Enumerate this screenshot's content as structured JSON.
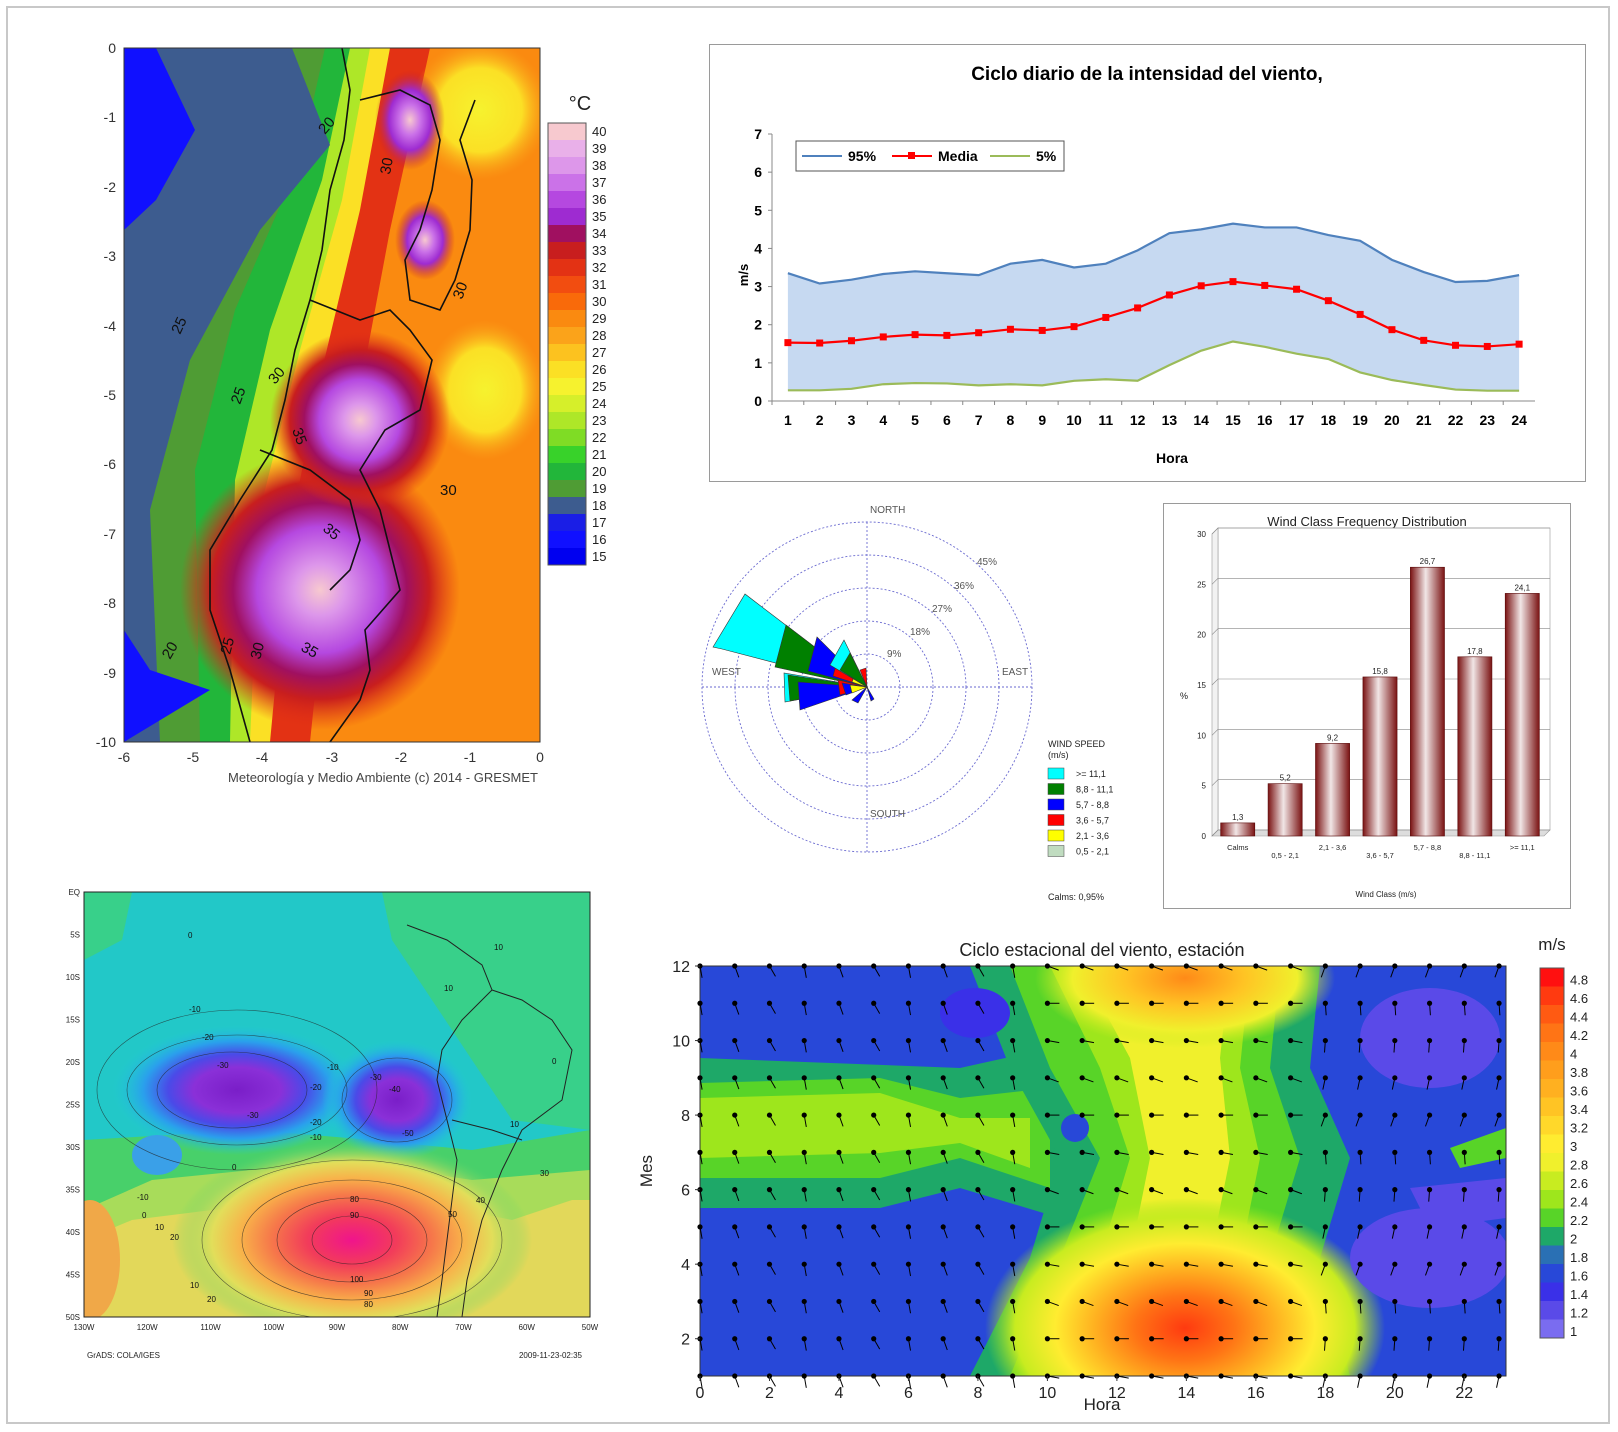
{
  "temp_map": {
    "x_ticks": [
      "-6",
      "-5",
      "-4",
      "-3",
      "-2",
      "-1",
      "0"
    ],
    "y_ticks": [
      "0",
      "-1",
      "-2",
      "-3",
      "-4",
      "-5",
      "-6",
      "-7",
      "-8",
      "-9",
      "-10"
    ],
    "contour_labels": [
      "20",
      "25",
      "30",
      "30",
      "30",
      "35",
      "35",
      "35",
      "35",
      "30",
      "20",
      "25",
      "30",
      "25",
      "20",
      "30"
    ],
    "footer": "Meteorología y Medio Ambiente (c) 2014 - GRESMET",
    "colorbar_unit": "°C",
    "colorbar_labels": [
      "40",
      "39",
      "38",
      "37",
      "36",
      "35",
      "34",
      "33",
      "32",
      "31",
      "30",
      "29",
      "28",
      "27",
      "26",
      "25",
      "24",
      "23",
      "22",
      "21",
      "20",
      "19",
      "18",
      "17",
      "16",
      "15"
    ],
    "colorbar_colors": [
      "#f7c9cf",
      "#e9b0e9",
      "#dd97ea",
      "#cb72e8",
      "#b548e0",
      "#9e2bd1",
      "#a01060",
      "#c81e1e",
      "#e33214",
      "#f24d10",
      "#f96a0a",
      "#fa8a10",
      "#fba31a",
      "#fcc21f",
      "#fbe025",
      "#f6f22e",
      "#d6ef2a",
      "#aee728",
      "#7fdc25",
      "#38d22a",
      "#22b63a",
      "#4f9c34",
      "#3d5c8f",
      "#1a1ee6",
      "#1010ff",
      "#0000f0"
    ]
  },
  "daily_chart": {
    "chart_data": {
      "type": "area",
      "title": "Ciclo diario de la intensidad del viento,",
      "xlabel": "Hora",
      "ylabel": "m/s",
      "x": [
        1,
        2,
        3,
        4,
        5,
        6,
        7,
        8,
        9,
        10,
        11,
        12,
        13,
        14,
        15,
        16,
        17,
        18,
        19,
        20,
        21,
        22,
        23,
        24
      ],
      "ylim": [
        0,
        7
      ],
      "y_ticks": [
        "0",
        "1",
        "2",
        "3",
        "4",
        "5",
        "6",
        "7"
      ],
      "legend_position": "top-left",
      "series": [
        {
          "name": "95%",
          "color": "#4f81bd",
          "values": [
            3.35,
            3.08,
            3.18,
            3.33,
            3.4,
            3.35,
            3.3,
            3.6,
            3.7,
            3.5,
            3.6,
            3.95,
            4.4,
            4.5,
            4.65,
            4.55,
            4.55,
            4.35,
            4.2,
            3.7,
            3.38,
            3.12,
            3.15,
            3.3
          ]
        },
        {
          "name": "Media",
          "color": "#ff0000",
          "values": [
            1.53,
            1.52,
            1.58,
            1.68,
            1.74,
            1.72,
            1.79,
            1.88,
            1.85,
            1.95,
            2.19,
            2.44,
            2.78,
            3.02,
            3.13,
            3.03,
            2.93,
            2.63,
            2.27,
            1.87,
            1.59,
            1.46,
            1.43,
            1.49
          ]
        },
        {
          "name": "5%",
          "color": "#9bbb59",
          "values": [
            0.28,
            0.28,
            0.32,
            0.44,
            0.47,
            0.46,
            0.41,
            0.44,
            0.41,
            0.53,
            0.57,
            0.53,
            0.94,
            1.32,
            1.56,
            1.42,
            1.24,
            1.1,
            0.75,
            0.55,
            0.42,
            0.3,
            0.27,
            0.27
          ]
        }
      ]
    }
  },
  "wind_rose": {
    "directions": {
      "north": "NORTH",
      "south": "SOUTH",
      "east": "EAST",
      "west": "WEST"
    },
    "rings": [
      "9%",
      "18%",
      "27%",
      "36%",
      "45%"
    ],
    "legend_title": "WIND SPEED",
    "legend_unit": "(m/s)",
    "legend_items": [
      {
        "label": ">= 11,1",
        "color": "#00ffff"
      },
      {
        "label": "8,8 - 11,1",
        "color": "#008000"
      },
      {
        "label": "5,7 -  8,8",
        "color": "#0000ff"
      },
      {
        "label": "3,6 -  5,7",
        "color": "#ff0000"
      },
      {
        "label": "2,1 -  3,6",
        "color": "#ffff00"
      },
      {
        "label": "0,5 -  2,1",
        "color": "#c0dcc0"
      }
    ],
    "calms": "Calms: 0,95%"
  },
  "freq_chart": {
    "chart_data": {
      "type": "bar",
      "title": "Wind Class Frequency Distribution",
      "xlabel": "Wind Class (m/s)",
      "ylabel": "%",
      "ylim": [
        0,
        30
      ],
      "y_ticks": [
        "0",
        "5",
        "10",
        "15",
        "20",
        "25",
        "30"
      ],
      "categories": [
        "Calms",
        "0,5 -  2,1",
        "2,1 -  3,6",
        "3,6 -  5,7",
        "5,7 -  8,8",
        "8,8 - 11,1",
        ">= 11,1"
      ],
      "values": [
        1.3,
        5.2,
        9.2,
        15.8,
        26.7,
        17.8,
        24.1
      ],
      "value_labels": [
        "1,3",
        "5,2",
        "9,2",
        "15,8",
        "26,7",
        "17,8",
        "24,1"
      ],
      "bar_color": "#8b1a1a"
    }
  },
  "anomaly_map": {
    "lat_ticks": [
      "EQ",
      "5S",
      "10S",
      "15S",
      "20S",
      "25S",
      "30S",
      "35S",
      "40S",
      "45S",
      "50S"
    ],
    "lon_ticks": [
      "130W",
      "120W",
      "110W",
      "100W",
      "90W",
      "80W",
      "70W",
      "60W",
      "50W"
    ],
    "contour_labels": [
      "0",
      "-10",
      "-20",
      "-30",
      "-10",
      "-20",
      "-30",
      "-40",
      "-30",
      "-20",
      "-10",
      "-50",
      "-60",
      "-70",
      "0",
      "-10",
      "0",
      "10",
      "20",
      "10",
      "10",
      "0",
      "10",
      "30",
      "40",
      "50",
      "60",
      "70",
      "80",
      "90",
      "100",
      "90",
      "80",
      "70",
      "60",
      "50",
      "40",
      "30",
      "20",
      "10",
      "20",
      "10"
    ],
    "footer_left": "GrADS: COLA/IGES",
    "footer_right": "2009-11-23-02:35"
  },
  "seasonal_chart": {
    "title": "Ciclo estacional del viento, estación",
    "xlabel": "Hora",
    "ylabel": "Mes",
    "x_ticks": [
      "0",
      "2",
      "4",
      "6",
      "8",
      "10",
      "12",
      "14",
      "16",
      "18",
      "20",
      "22"
    ],
    "y_ticks": [
      "2",
      "4",
      "6",
      "8",
      "10",
      "12"
    ],
    "colorbar_unit": "m/s",
    "colorbar_labels": [
      "4.8",
      "4.6",
      "4.4",
      "4.2",
      "4",
      "3.8",
      "3.6",
      "3.4",
      "3.2",
      "3",
      "2.8",
      "2.6",
      "2.4",
      "2.2",
      "2",
      "1.8",
      "1.6",
      "1.4",
      "1.2",
      "1"
    ],
    "colorbar_colors": [
      "#ff1010",
      "#ff3a10",
      "#ff5a12",
      "#ff7415",
      "#ff8a18",
      "#ff9e1c",
      "#ffb020",
      "#ffc424",
      "#ffd82a",
      "#ffec30",
      "#f0f02c",
      "#c8ec20",
      "#9ee61c",
      "#58d428",
      "#1ea868",
      "#2a70b4",
      "#2848d8",
      "#3a30e8",
      "#5a4ae8",
      "#7a6cf0"
    ]
  }
}
